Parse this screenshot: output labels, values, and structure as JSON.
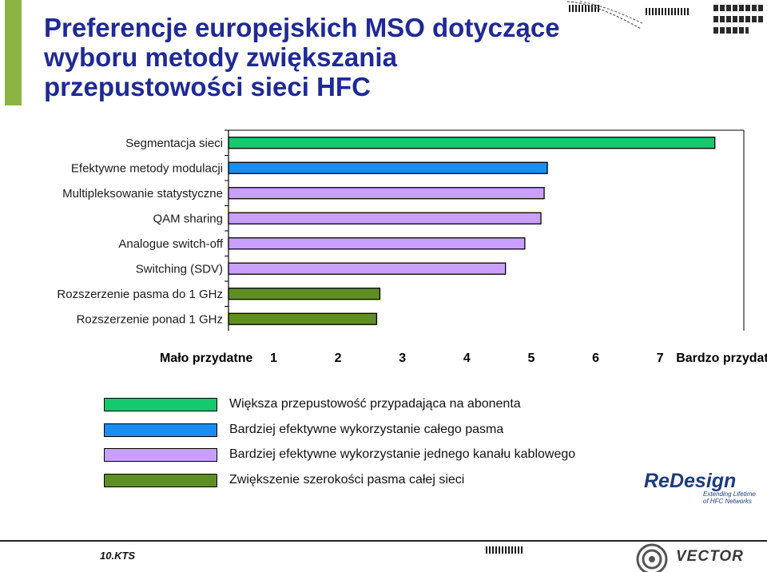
{
  "title": {
    "line1": "Preferencje europejskich MSO dotyczące",
    "line2": "wyboru metody zwiększania",
    "line3": "przepustowości sieci HFC"
  },
  "chart_data": {
    "type": "bar",
    "orientation": "horizontal",
    "categories": [
      "Segmentacja sieci",
      "Efektywne metody modulacji",
      "Multipleksowanie statystyczne",
      "QAM sharing",
      "Analogue switch-off",
      "Switching (SDV)",
      "Rozszerzenie pasma do 1 GHz",
      "Rozszerzenie ponad 1 GHz"
    ],
    "values": [
      7.85,
      5.25,
      5.2,
      5.15,
      4.9,
      4.6,
      2.65,
      2.6
    ],
    "bar_groups": [
      0,
      1,
      2,
      2,
      2,
      2,
      3,
      3
    ],
    "x_ticks": [
      1,
      2,
      3,
      4,
      5,
      6,
      7
    ],
    "xlim": [
      0.3,
      8.3
    ],
    "axis_min_label": "Mało przydatne",
    "axis_max_label": "Bardzo przydatne",
    "grid": false
  },
  "legend": [
    {
      "label": "Większa przepustowość przypadająca na abonenta",
      "color": "#16c86e"
    },
    {
      "label": "Bardziej efektywne wykorzystanie całego pasma",
      "color": "#1a8ef0"
    },
    {
      "label": "Bardziej efektywne wykorzystanie jednego kanału kablowego",
      "color": "#c9a0ff"
    },
    {
      "label": "Zwiększenie szerokości pasma całej sieci",
      "color": "#5f8f24"
    }
  ],
  "logos": {
    "redesign": "ReDesign",
    "redesign_tagline_1": "Extending Lifetime",
    "redesign_tagline_2": "of HFC Networks",
    "vector": "VECTOR"
  },
  "footer": {
    "code": "10.KTS"
  }
}
